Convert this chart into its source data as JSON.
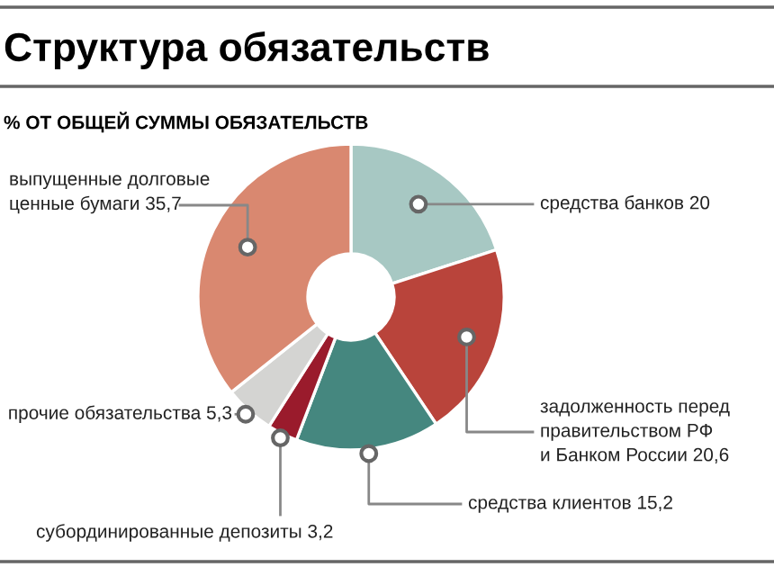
{
  "chart_data": {
    "type": "donut",
    "title": "Структура обязательств",
    "subtitle": "% ОТ ОБЩЕЙ СУММЫ ОБЯЗАТЕЛЬСТВ",
    "categories": [
      "средства банков",
      "задолженность перед\nправительством РФ\nи Банком России",
      "средства клиентов",
      "субординированные депозиты",
      "прочие обязательства",
      "выпущенные долговые\nценные бумаги"
    ],
    "values": [
      20,
      20.6,
      15.2,
      3.2,
      5.3,
      35.7
    ],
    "value_labels": [
      "20",
      "20,6",
      "15,2",
      "3,2",
      "5,3",
      "35,7"
    ],
    "colors": [
      "#a7c8c3",
      "#b9443b",
      "#45877f",
      "#9a1b2c",
      "#d4d4d2",
      "#d98870"
    ],
    "legend": false
  }
}
